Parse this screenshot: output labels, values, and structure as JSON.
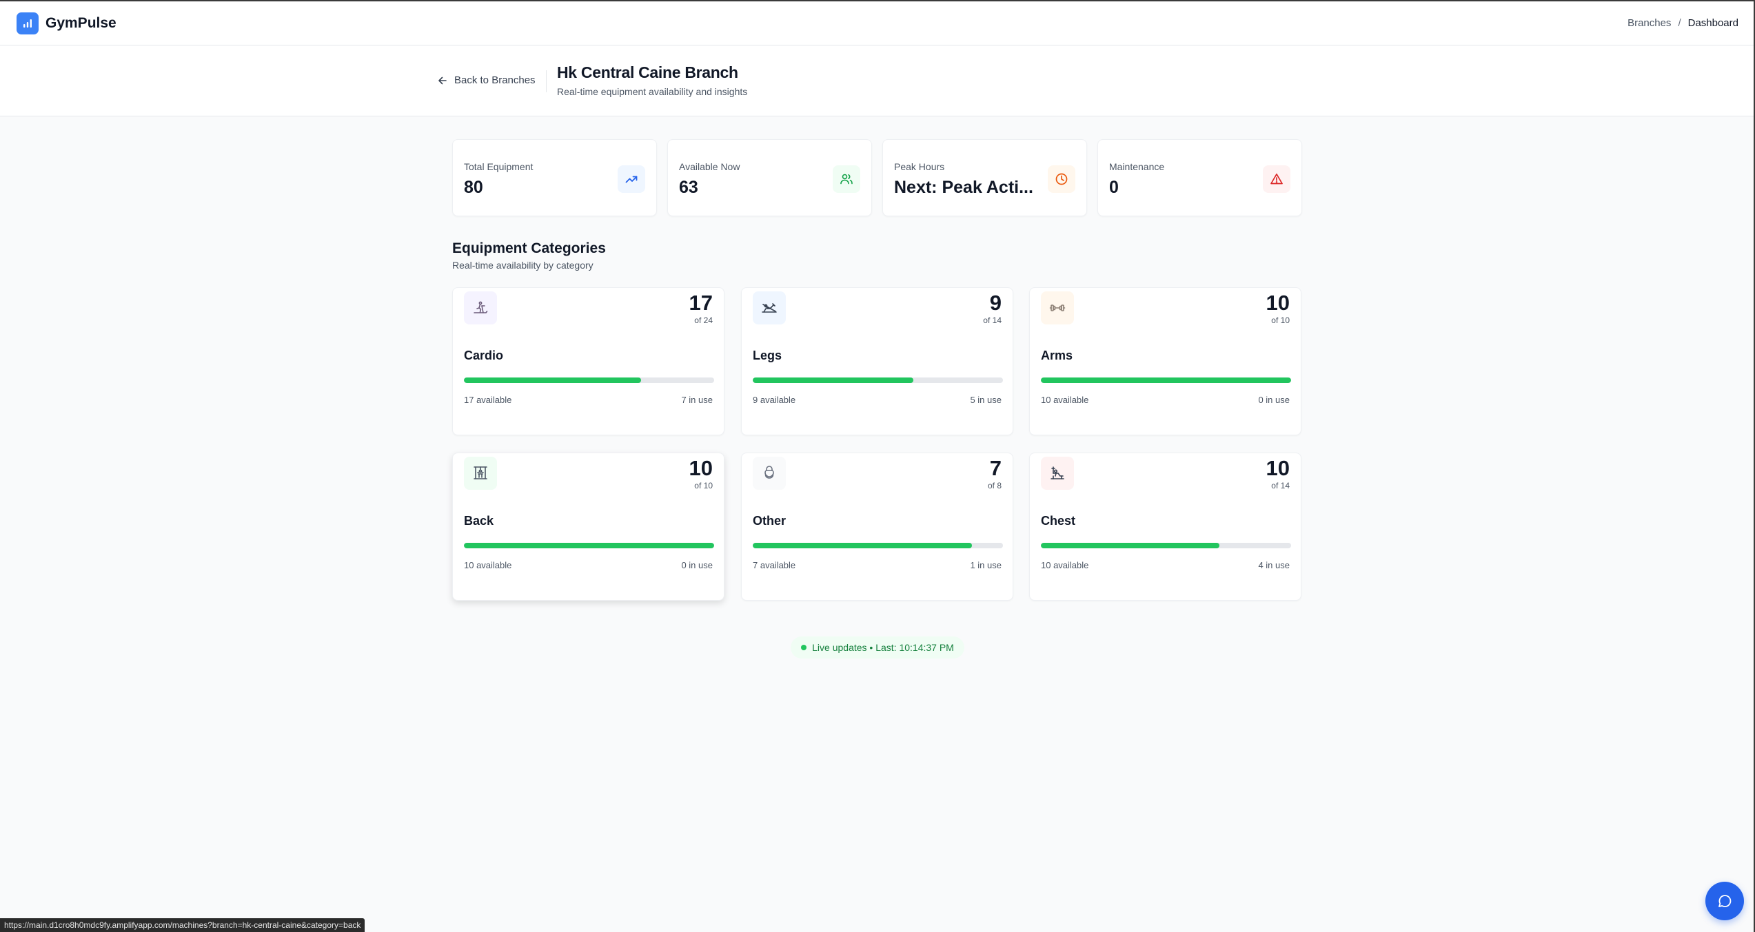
{
  "app": {
    "name": "GymPulse",
    "logo_icon": "bar-chart-icon",
    "accent": "#3b82f6"
  },
  "breadcrumbs": {
    "items": [
      "Branches",
      "Dashboard"
    ],
    "separator": "/"
  },
  "header": {
    "back_label": "Back to Branches",
    "title": "Hk Central Caine Branch",
    "subtitle": "Real-time equipment availability and insights"
  },
  "stats": [
    {
      "label": "Total Equipment",
      "value": "80",
      "icon": "trending-up-icon",
      "color": "#2563eb",
      "bg": "#eff6ff"
    },
    {
      "label": "Available Now",
      "value": "63",
      "icon": "users-icon",
      "color": "#16a34a",
      "bg": "#f0fdf4"
    },
    {
      "label": "Peak Hours",
      "value": "Next: Peak Acti...",
      "icon": "clock-icon",
      "color": "#ea580c",
      "bg": "#fff7ed"
    },
    {
      "label": "Maintenance",
      "value": "0",
      "icon": "alert-triangle-icon",
      "color": "#dc2626",
      "bg": "#fef2f2"
    }
  ],
  "categories_section": {
    "title": "Equipment Categories",
    "subtitle": "Real-time availability by category"
  },
  "categories": [
    {
      "name": "Cardio",
      "count": "17",
      "of": "of 24",
      "available": "17 available",
      "in_use": "7 in use",
      "fraction": 0.708,
      "icon": "treadmill-icon",
      "bg": "#f5f3ff"
    },
    {
      "name": "Legs",
      "count": "9",
      "of": "of 14",
      "available": "9 available",
      "in_use": "5 in use",
      "fraction": 0.643,
      "icon": "leg-press-icon",
      "bg": "#eff6ff"
    },
    {
      "name": "Arms",
      "count": "10",
      "of": "of 10",
      "available": "10 available",
      "in_use": "0 in use",
      "fraction": 1.0,
      "icon": "dumbbell-icon",
      "bg": "#fff7ed"
    },
    {
      "name": "Back",
      "count": "10",
      "of": "of 10",
      "available": "10 available",
      "in_use": "0 in use",
      "fraction": 1.0,
      "icon": "cable-machine-icon",
      "bg": "#f0fdf4"
    },
    {
      "name": "Other",
      "count": "7",
      "of": "of 8",
      "available": "7 available",
      "in_use": "1 in use",
      "fraction": 0.875,
      "icon": "kettlebell-icon",
      "bg": "#f9fafb"
    },
    {
      "name": "Chest",
      "count": "10",
      "of": "of 14",
      "available": "10 available",
      "in_use": "4 in use",
      "fraction": 0.714,
      "icon": "bench-press-icon",
      "bg": "#fef2f2"
    }
  ],
  "live": {
    "text": "Live updates • Last: 10:14:37 PM"
  },
  "status_url": "https://main.d1cro8h0mdc9fy.amplifyapp.com/machines?branch=hk-central-caine&category=back",
  "chat": {
    "icon": "message-circle-icon"
  }
}
